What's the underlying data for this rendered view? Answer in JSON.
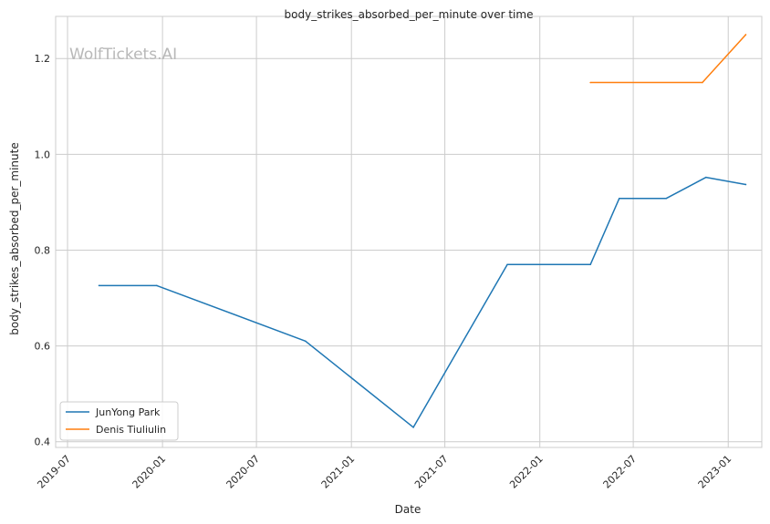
{
  "watermark": "WolfTickets.AI",
  "chart_data": {
    "type": "line",
    "title": "body_strikes_absorbed_per_minute over time",
    "xlabel": "Date",
    "ylabel": "body_strikes_absorbed_per_minute",
    "x_ticks": [
      "2019-07",
      "2020-01",
      "2020-07",
      "2021-01",
      "2021-07",
      "2022-01",
      "2022-07",
      "2023-01"
    ],
    "y_ticks": [
      "0.4",
      "0.6",
      "0.8",
      "1.0",
      "1.2"
    ],
    "xlim": [
      "2019-06-08",
      "2023-03-07"
    ],
    "ylim": [
      0.388,
      1.288
    ],
    "grid": true,
    "legend_position": "lower-left",
    "series": [
      {
        "name": "JunYong Park",
        "color": "#1f77b4",
        "points": [
          {
            "x": "2019-08-31",
            "y": 0.726
          },
          {
            "x": "2019-12-21",
            "y": 0.726
          },
          {
            "x": "2020-10-04",
            "y": 0.61
          },
          {
            "x": "2021-05-01",
            "y": 0.43
          },
          {
            "x": "2021-10-30",
            "y": 0.77
          },
          {
            "x": "2022-04-09",
            "y": 0.77
          },
          {
            "x": "2022-06-04",
            "y": 0.908
          },
          {
            "x": "2022-09-03",
            "y": 0.908
          },
          {
            "x": "2022-11-19",
            "y": 0.952
          },
          {
            "x": "2023-02-04",
            "y": 0.937
          }
        ]
      },
      {
        "name": "Denis Tiuliulin",
        "color": "#ff7f0e",
        "points": [
          {
            "x": "2022-04-09",
            "y": 1.15
          },
          {
            "x": "2022-11-12",
            "y": 1.15
          },
          {
            "x": "2023-02-04",
            "y": 1.25
          }
        ]
      }
    ]
  }
}
